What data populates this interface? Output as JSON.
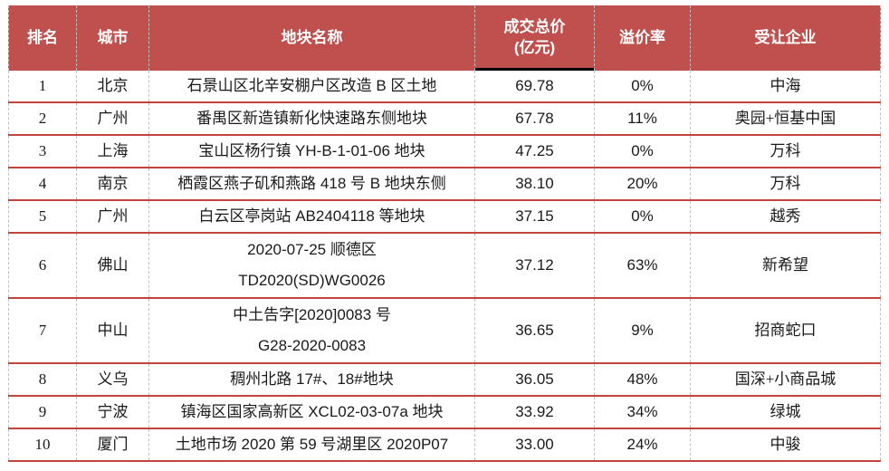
{
  "colors": {
    "header_bg": "#C0504D",
    "header_text": "#FFFFFF",
    "row_line": "#C2443E",
    "dash": "#BFBFBF",
    "price_underline": "#000000"
  },
  "table": {
    "header": {
      "rank": "排名",
      "city": "城市",
      "parcel": "地块名称",
      "price_line1": "成交总价",
      "price_line2": "(亿元)",
      "premium": "溢价率",
      "company": "受让企业"
    },
    "rows": [
      {
        "rank": "1",
        "city": "北京",
        "parcel": [
          "石景山区北辛安棚户区改造 B 区土地"
        ],
        "price": "69.78",
        "premium": "0%",
        "company": "中海"
      },
      {
        "rank": "2",
        "city": "广州",
        "parcel": [
          "番禺区新造镇新化快速路东侧地块"
        ],
        "price": "67.78",
        "premium": "11%",
        "company": "奥园+恒基中国"
      },
      {
        "rank": "3",
        "city": "上海",
        "parcel": [
          "宝山区杨行镇 YH-B-1-01-06 地块"
        ],
        "price": "47.25",
        "premium": "0%",
        "company": "万科"
      },
      {
        "rank": "4",
        "city": "南京",
        "parcel": [
          "栖霞区燕子矶和燕路 418 号 B 地块东侧"
        ],
        "price": "38.10",
        "premium": "20%",
        "company": "万科"
      },
      {
        "rank": "5",
        "city": "广州",
        "parcel": [
          "白云区亭岗站 AB2404118 等地块"
        ],
        "price": "37.15",
        "premium": "0%",
        "company": "越秀"
      },
      {
        "rank": "6",
        "city": "佛山",
        "parcel": [
          "2020-07-25 顺德区",
          "TD2020(SD)WG0026"
        ],
        "price": "37.12",
        "premium": "63%",
        "company": "新希望"
      },
      {
        "rank": "7",
        "city": "中山",
        "parcel": [
          "中土告字[2020]0083 号",
          "G28-2020-0083"
        ],
        "price": "36.65",
        "premium": "9%",
        "company": "招商蛇口"
      },
      {
        "rank": "8",
        "city": "义乌",
        "parcel": [
          "稠州北路 17#、18#地块"
        ],
        "price": "36.05",
        "premium": "48%",
        "company": "国深+小商品城"
      },
      {
        "rank": "9",
        "city": "宁波",
        "parcel": [
          "镇海区国家高新区 XCL02-03-07a 地块"
        ],
        "price": "33.92",
        "premium": "34%",
        "company": "绿城"
      },
      {
        "rank": "10",
        "city": "厦门",
        "parcel": [
          "土地市场 2020 第 59 号湖里区 2020P07"
        ],
        "price": "33.00",
        "premium": "24%",
        "company": "中骏"
      }
    ]
  }
}
